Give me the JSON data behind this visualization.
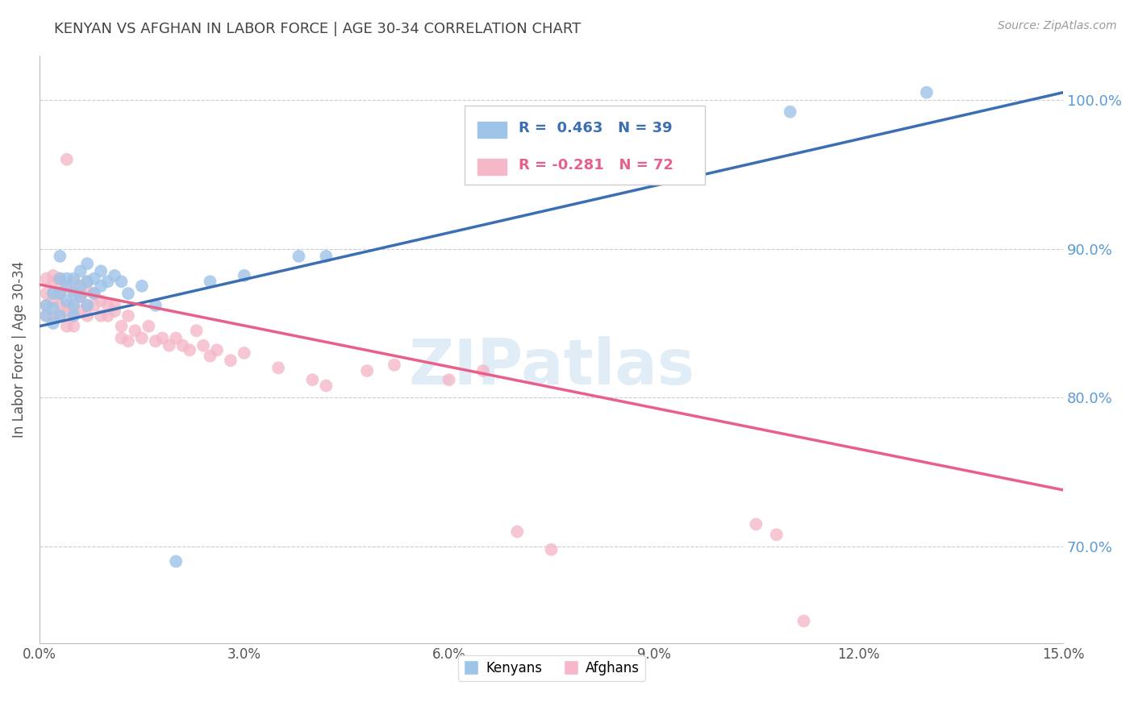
{
  "title": "KENYAN VS AFGHAN IN LABOR FORCE | AGE 30-34 CORRELATION CHART",
  "source": "Source: ZipAtlas.com",
  "ylabel": "In Labor Force | Age 30-34",
  "xmin": 0.0,
  "xmax": 0.15,
  "ymin": 0.635,
  "ymax": 1.03,
  "yticks": [
    0.7,
    0.8,
    0.9,
    1.0
  ],
  "ytick_labels": [
    "70.0%",
    "80.0%",
    "90.0%",
    "100.0%"
  ],
  "xticks": [
    0.0,
    0.03,
    0.06,
    0.09,
    0.12,
    0.15
  ],
  "xtick_labels": [
    "0.0%",
    "3.0%",
    "6.0%",
    "9.0%",
    "12.0%",
    "15.0%"
  ],
  "kenyan_color": "#9ec4e8",
  "afghan_color": "#f4b8c8",
  "kenyan_line_color": "#3c6eb4",
  "afghan_line_color": "#e8608a",
  "kenyan_R": 0.463,
  "kenyan_N": 39,
  "afghan_R": -0.281,
  "afghan_N": 72,
  "legend_label_kenyan": "Kenyans",
  "legend_label_afghan": "Afghans",
  "watermark": "ZIPatlas",
  "background_color": "#ffffff",
  "grid_color": "#cccccc",
  "title_color": "#444444",
  "axis_label_color": "#555555",
  "right_axis_color": "#5b9bd5",
  "kenyan_x": [
    0.001,
    0.001,
    0.002,
    0.002,
    0.002,
    0.003,
    0.003,
    0.003,
    0.003,
    0.004,
    0.004,
    0.004,
    0.005,
    0.005,
    0.005,
    0.005,
    0.006,
    0.006,
    0.006,
    0.007,
    0.007,
    0.007,
    0.008,
    0.008,
    0.009,
    0.009,
    0.01,
    0.011,
    0.012,
    0.013,
    0.015,
    0.017,
    0.02,
    0.025,
    0.03,
    0.038,
    0.042,
    0.11,
    0.13
  ],
  "kenyan_y": [
    0.855,
    0.862,
    0.86,
    0.85,
    0.87,
    0.855,
    0.87,
    0.88,
    0.895,
    0.875,
    0.865,
    0.88,
    0.87,
    0.88,
    0.862,
    0.855,
    0.875,
    0.868,
    0.885,
    0.878,
    0.89,
    0.862,
    0.88,
    0.87,
    0.885,
    0.875,
    0.878,
    0.882,
    0.878,
    0.87,
    0.875,
    0.862,
    0.69,
    0.878,
    0.882,
    0.895,
    0.895,
    0.992,
    1.005
  ],
  "afghan_x": [
    0.001,
    0.001,
    0.001,
    0.001,
    0.002,
    0.002,
    0.002,
    0.002,
    0.002,
    0.003,
    0.003,
    0.003,
    0.003,
    0.003,
    0.003,
    0.004,
    0.004,
    0.004,
    0.004,
    0.004,
    0.005,
    0.005,
    0.005,
    0.005,
    0.005,
    0.006,
    0.006,
    0.006,
    0.006,
    0.007,
    0.007,
    0.007,
    0.007,
    0.008,
    0.008,
    0.009,
    0.009,
    0.01,
    0.01,
    0.011,
    0.011,
    0.012,
    0.012,
    0.013,
    0.013,
    0.014,
    0.015,
    0.016,
    0.017,
    0.018,
    0.019,
    0.02,
    0.021,
    0.022,
    0.023,
    0.024,
    0.025,
    0.026,
    0.028,
    0.03,
    0.035,
    0.04,
    0.042,
    0.048,
    0.052,
    0.06,
    0.065,
    0.07,
    0.075,
    0.105,
    0.108,
    0.112
  ],
  "afghan_y": [
    0.87,
    0.88,
    0.862,
    0.855,
    0.878,
    0.87,
    0.865,
    0.882,
    0.855,
    0.878,
    0.87,
    0.862,
    0.855,
    0.88,
    0.87,
    0.96,
    0.875,
    0.862,
    0.858,
    0.848,
    0.872,
    0.862,
    0.878,
    0.858,
    0.848,
    0.875,
    0.868,
    0.858,
    0.87,
    0.872,
    0.862,
    0.878,
    0.855,
    0.87,
    0.862,
    0.865,
    0.855,
    0.862,
    0.855,
    0.862,
    0.858,
    0.84,
    0.848,
    0.855,
    0.838,
    0.845,
    0.84,
    0.848,
    0.838,
    0.84,
    0.835,
    0.84,
    0.835,
    0.832,
    0.845,
    0.835,
    0.828,
    0.832,
    0.825,
    0.83,
    0.82,
    0.812,
    0.808,
    0.818,
    0.822,
    0.812,
    0.818,
    0.71,
    0.698,
    0.715,
    0.708,
    0.65
  ],
  "kenyan_trendline_x": [
    0.0,
    0.15
  ],
  "kenyan_trendline_y": [
    0.848,
    1.005
  ],
  "afghan_trendline_x": [
    0.0,
    0.15
  ],
  "afghan_trendline_y": [
    0.876,
    0.738
  ]
}
